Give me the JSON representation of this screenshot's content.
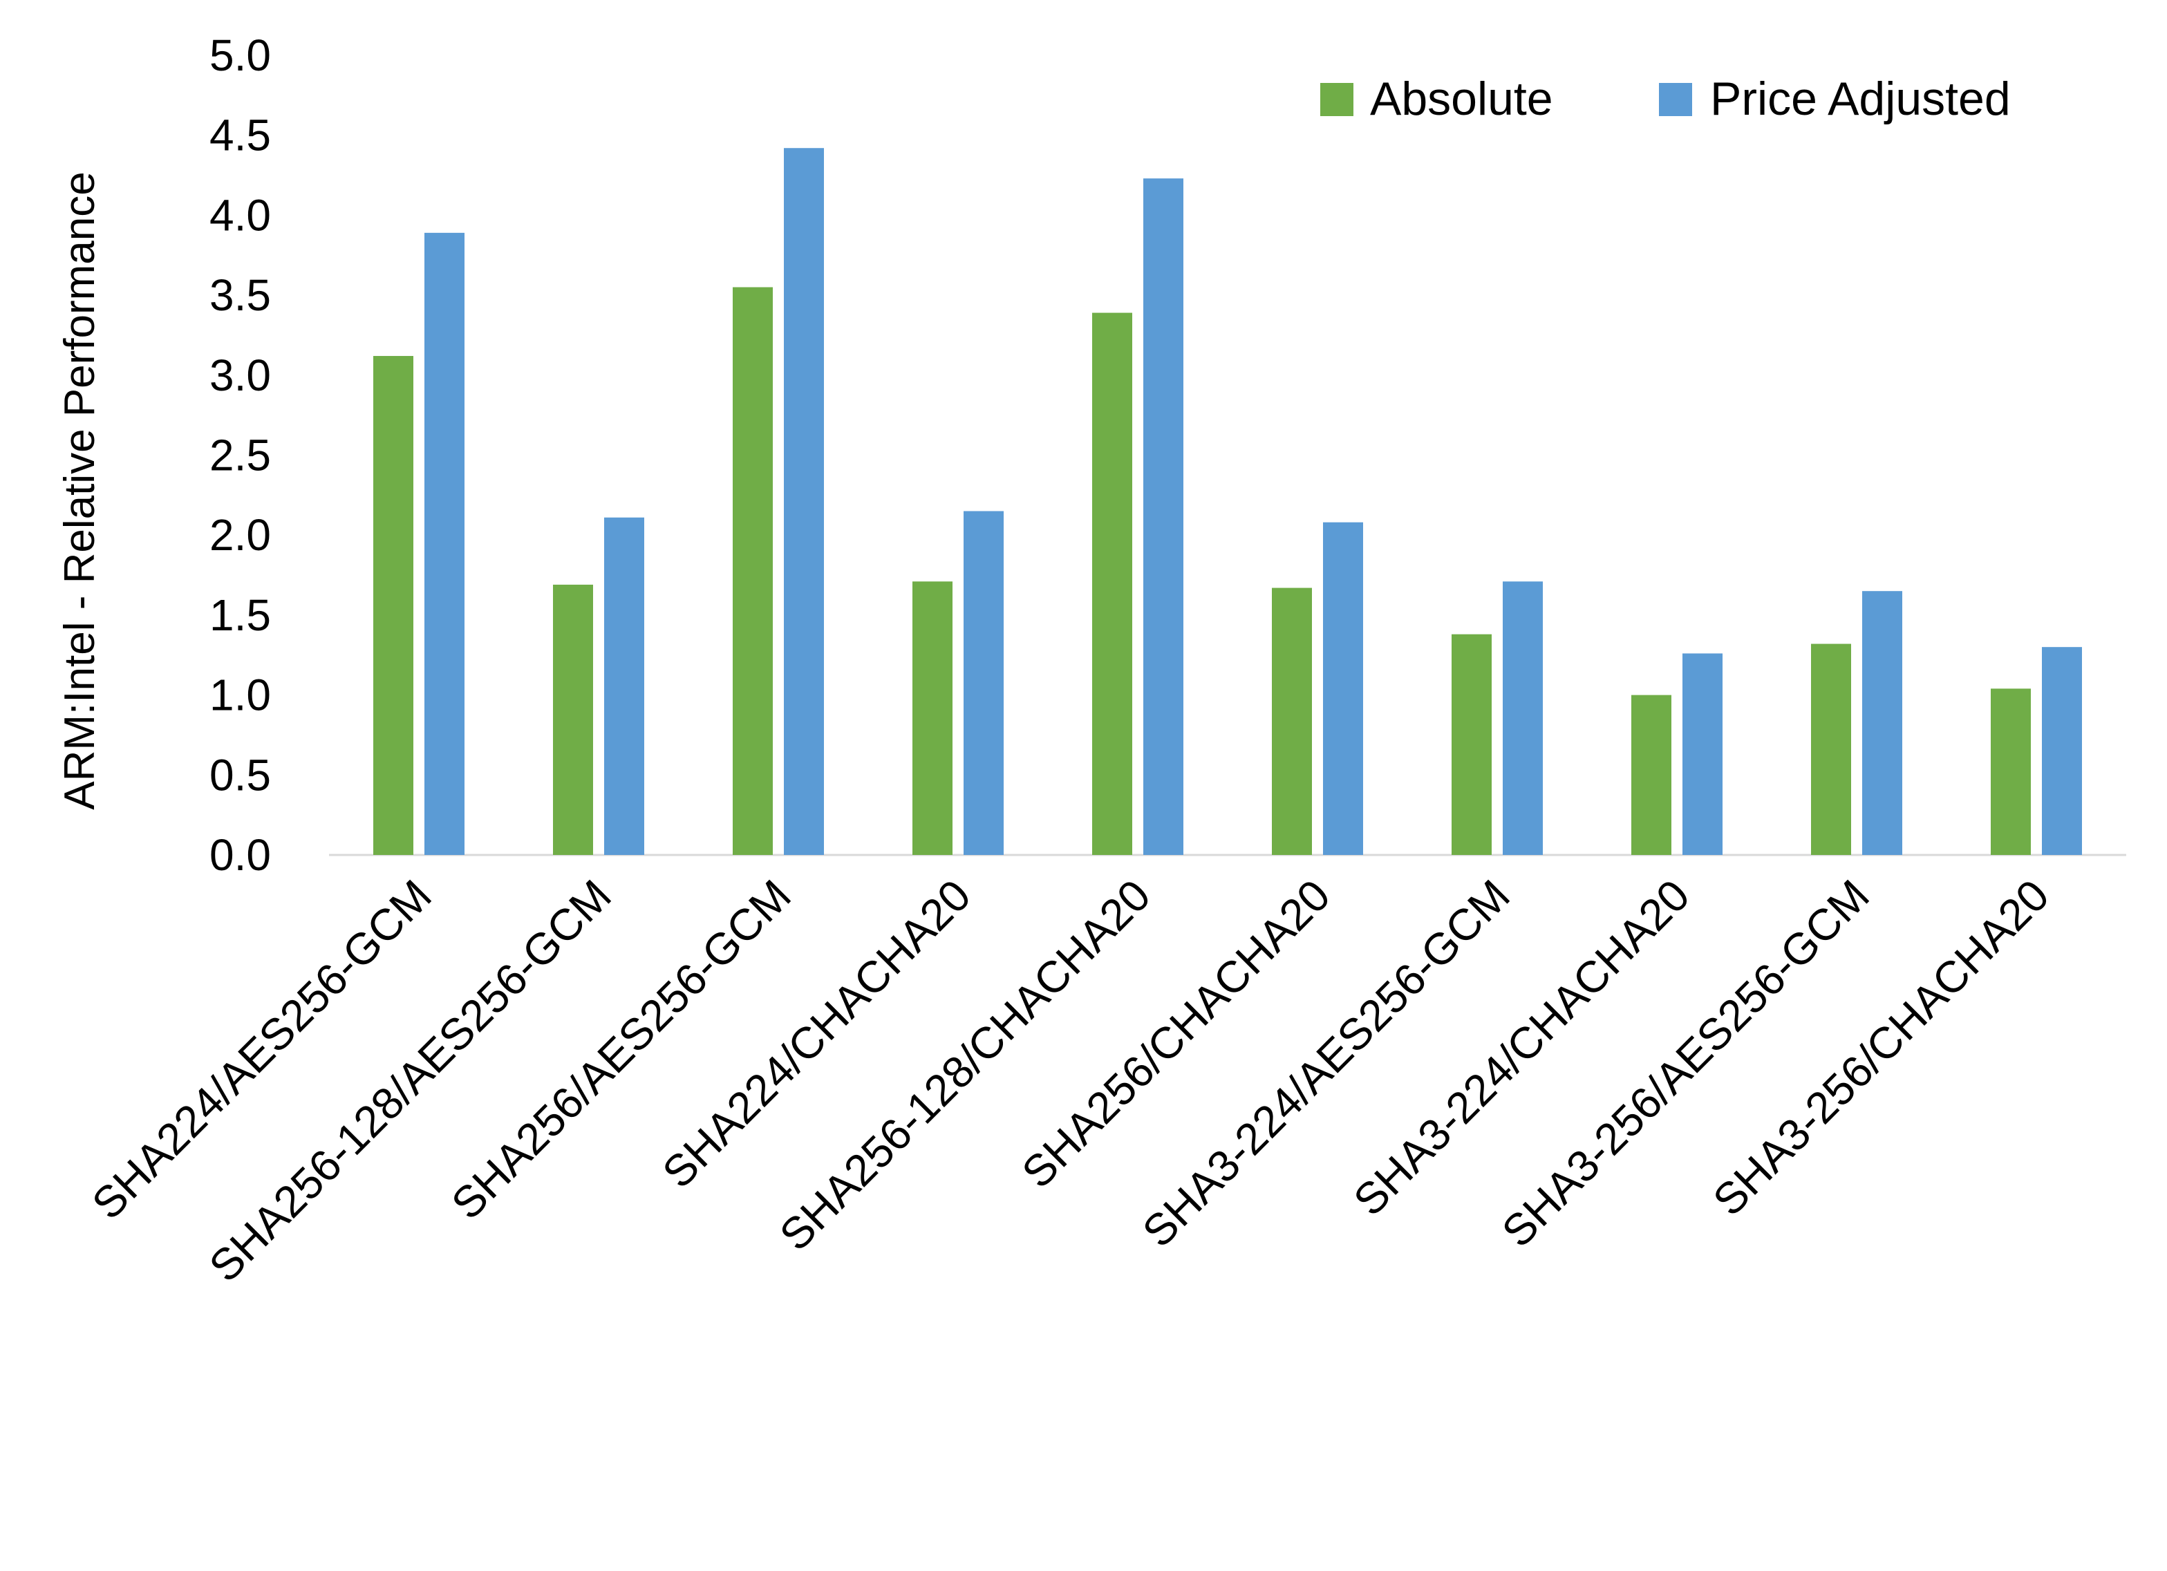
{
  "chart_data": {
    "type": "bar",
    "title": "",
    "xlabel": "",
    "ylabel": "ARM:Intel - Relative Performance",
    "ylim": [
      0,
      5.0
    ],
    "yticks": [
      "0.0",
      "0.5",
      "1.0",
      "1.5",
      "2.0",
      "2.5",
      "3.0",
      "3.5",
      "4.0",
      "4.5",
      "5.0"
    ],
    "grid": false,
    "legend_position": "top-right",
    "categories": [
      "SHA224/AES256-GCM",
      "SHA256-128/AES256-GCM",
      "SHA256/AES256-GCM",
      "SHA224/CHACHA20",
      "SHA256-128/CHACHA20",
      "SHA256/CHACHA20",
      "SHA3-224/AES256-GCM",
      "SHA3-224/CHACHA20",
      "SHA3-256/AES256-GCM",
      "SHA3-256/CHACHA20"
    ],
    "series": [
      {
        "name": "Absolute",
        "color": "#70AD47",
        "values": [
          3.12,
          1.69,
          3.55,
          1.71,
          3.39,
          1.67,
          1.38,
          1.0,
          1.32,
          1.04
        ]
      },
      {
        "name": "Price Adjusted",
        "color": "#5B9BD5",
        "values": [
          3.89,
          2.11,
          4.42,
          2.15,
          4.23,
          2.08,
          1.71,
          1.26,
          1.65,
          1.3
        ]
      }
    ]
  }
}
